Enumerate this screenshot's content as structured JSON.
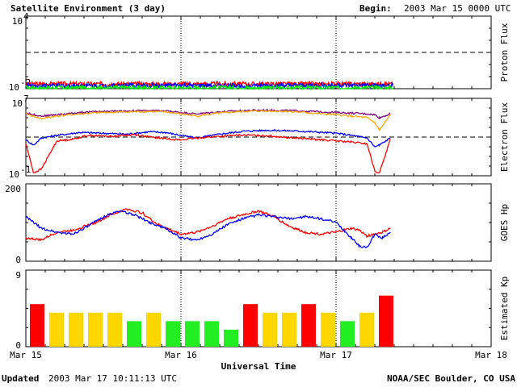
{
  "header": {
    "title": "Satellite Environment (3 day)",
    "begin_label": "Begin:",
    "begin_value": "2003 Mar 15 0000 UTC"
  },
  "footer": {
    "updated_label": "Updated",
    "updated_value": "2003 Mar 17 10:11:13 UTC",
    "credit": "NOAA/SEC Boulder, CO USA"
  },
  "chart_data": [
    {
      "type": "line",
      "ylabel": "Proton Flux",
      "yscale": "log",
      "ylim": [
        0.01,
        10000
      ],
      "y_ticks": [
        {
          "base": "10",
          "exp": "4"
        },
        {
          "base": "10",
          "exp": "-2"
        }
      ],
      "threshold": 10,
      "series": [
        {
          "color": "#ff0000",
          "approx_level": 0.025
        },
        {
          "color": "#0000ff",
          "approx_level": 0.018
        },
        {
          "color": "#00ee00",
          "approx_level": 0.012
        }
      ]
    },
    {
      "type": "line",
      "ylabel": "Electron Flux",
      "yscale": "log",
      "ylim": [
        0.1,
        10000000
      ],
      "y_ticks": [
        {
          "base": "10",
          "exp": "7"
        },
        {
          "base": "10",
          "exp": "-1"
        }
      ],
      "threshold": 1000,
      "series": [
        {
          "color": "#800080",
          "x": [
            0,
            0.1,
            0.2,
            0.35,
            0.5,
            0.65,
            0.8,
            0.9,
            1.0,
            1.1,
            1.25,
            1.4,
            1.55,
            1.7,
            1.85,
            2.0,
            2.1,
            2.2,
            2.25,
            2.28,
            2.35
          ],
          "y": [
            300000,
            150000,
            200000,
            350000,
            450000,
            500000,
            550000,
            500000,
            350000,
            250000,
            400000,
            550000,
            600000,
            550000,
            450000,
            350000,
            300000,
            250000,
            200000,
            100000,
            250000
          ]
        },
        {
          "color": "#ffa500",
          "x": [
            0,
            0.1,
            0.2,
            0.35,
            0.5,
            0.65,
            0.8,
            0.9,
            1.0,
            1.1,
            1.25,
            1.4,
            1.55,
            1.7,
            1.85,
            2.0,
            2.1,
            2.2,
            2.25,
            2.28,
            2.35
          ],
          "y": [
            250000,
            80000,
            150000,
            250000,
            350000,
            400000,
            450000,
            400000,
            250000,
            150000,
            300000,
            450000,
            500000,
            450000,
            300000,
            200000,
            150000,
            100000,
            30000,
            5000,
            200000
          ]
        },
        {
          "color": "#0000ff",
          "x": [
            0,
            0.05,
            0.1,
            0.2,
            0.35,
            0.5,
            0.65,
            0.8,
            0.9,
            1.0,
            1.1,
            1.25,
            1.4,
            1.55,
            1.7,
            1.85,
            2.0,
            2.1,
            2.2,
            2.25,
            2.28,
            2.35
          ],
          "y": [
            500,
            150,
            800,
            1500,
            3000,
            2500,
            2000,
            3500,
            3000,
            1500,
            800,
            2000,
            4000,
            5000,
            4500,
            3500,
            2500,
            1500,
            800,
            100,
            150,
            800
          ]
        },
        {
          "color": "#ff0000",
          "x": [
            0,
            0.05,
            0.1,
            0.2,
            0.3,
            0.4,
            0.55,
            0.7,
            0.8,
            0.9,
            1.0,
            1.1,
            1.25,
            1.4,
            1.55,
            1.7,
            1.85,
            2.0,
            2.1,
            2.2,
            2.25,
            2.28,
            2.35
          ],
          "y": [
            200,
            0.2,
            0.5,
            400,
            600,
            1500,
            1200,
            1800,
            1000,
            700,
            500,
            800,
            1200,
            1600,
            1400,
            900,
            600,
            400,
            300,
            200,
            0.3,
            0.2,
            600
          ]
        }
      ]
    },
    {
      "type": "line",
      "ylabel": "GOES Hp",
      "ylim": [
        0,
        200
      ],
      "y_ticks": [
        "200",
        "0"
      ],
      "series": [
        {
          "color": "#ff0000",
          "x": [
            0,
            0.1,
            0.2,
            0.3,
            0.45,
            0.55,
            0.65,
            0.75,
            0.85,
            1.0,
            1.1,
            1.2,
            1.3,
            1.4,
            1.5,
            1.6,
            1.7,
            1.8,
            1.9,
            2.0,
            2.1,
            2.15,
            2.2,
            2.25,
            2.3,
            2.35
          ],
          "y": [
            60,
            55,
            75,
            80,
            100,
            120,
            135,
            125,
            95,
            70,
            75,
            90,
            110,
            120,
            130,
            115,
            90,
            75,
            70,
            75,
            85,
            80,
            65,
            70,
            75,
            85
          ]
        },
        {
          "color": "#0000ff",
          "x": [
            0,
            0.05,
            0.1,
            0.2,
            0.3,
            0.4,
            0.5,
            0.6,
            0.7,
            0.8,
            0.9,
            1.0,
            1.1,
            1.2,
            1.3,
            1.4,
            1.5,
            1.6,
            1.7,
            1.8,
            1.9,
            2.0,
            2.05,
            2.1,
            2.15,
            2.2,
            2.25,
            2.3,
            2.35
          ],
          "y": [
            115,
            100,
            85,
            75,
            70,
            90,
            115,
            130,
            120,
            100,
            85,
            60,
            55,
            70,
            95,
            110,
            120,
            115,
            110,
            115,
            110,
            100,
            80,
            60,
            40,
            35,
            70,
            60,
            75
          ]
        }
      ]
    },
    {
      "type": "bar",
      "ylabel": "Estimated Kp",
      "ylim": [
        0,
        9
      ],
      "y_ticks": [
        "9",
        "0"
      ],
      "bar_hours": 3,
      "colors": {
        "quiet": "#22ee22",
        "unsettled": "#ffd700",
        "storm": "#ff0000"
      },
      "values": [
        5,
        4,
        4,
        4,
        4,
        3,
        4,
        3,
        3,
        3,
        2,
        5,
        4,
        4,
        5,
        4,
        3,
        4,
        6
      ]
    }
  ],
  "x_axis": {
    "title": "Universal Time",
    "tick_labels": [
      "Mar 15",
      "Mar 16",
      "Mar 17",
      "Mar 18"
    ]
  }
}
